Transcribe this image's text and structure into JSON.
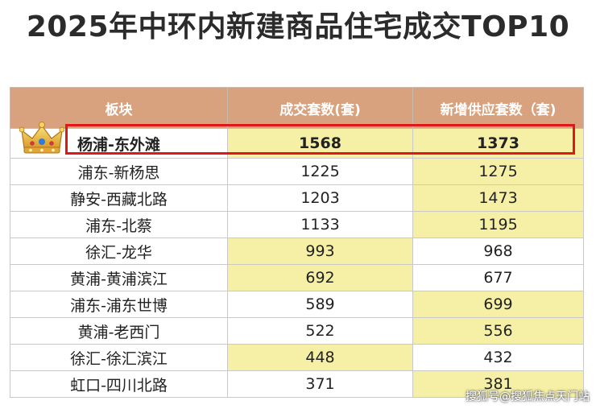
{
  "title": "2025年中环内新建商品住宅成交TOP10",
  "table": {
    "headers": [
      "板块",
      "成交套数(套)",
      "新增供应套数（套)"
    ],
    "rows": [
      {
        "area": "杨浦-东外滩",
        "deals": "1568",
        "supply": "1373"
      },
      {
        "area": "浦东-新杨思",
        "deals": "1225",
        "supply": "1275"
      },
      {
        "area": "静安-西藏北路",
        "deals": "1203",
        "supply": "1473"
      },
      {
        "area": "浦东-北蔡",
        "deals": "1133",
        "supply": "1195"
      },
      {
        "area": "徐汇-龙华",
        "deals": "993",
        "supply": "968"
      },
      {
        "area": "黄浦-黄浦滨江",
        "deals": "692",
        "supply": "677"
      },
      {
        "area": "浦东-浦东世博",
        "deals": "589",
        "supply": "699"
      },
      {
        "area": "黄浦-老西门",
        "deals": "522",
        "supply": "556"
      },
      {
        "area": "徐汇-徐汇滨江",
        "deals": "448",
        "supply": "432"
      },
      {
        "area": "虹口-四川北路",
        "deals": "371",
        "supply": "381"
      }
    ]
  },
  "colors": {
    "header_bg": "#d9a27f",
    "highlight_cell": "#f6f0a6",
    "top_row_box": "#e01818"
  },
  "crown_icon": "crown-icon",
  "watermark": "搜狐号@搜狐焦点天门站"
}
